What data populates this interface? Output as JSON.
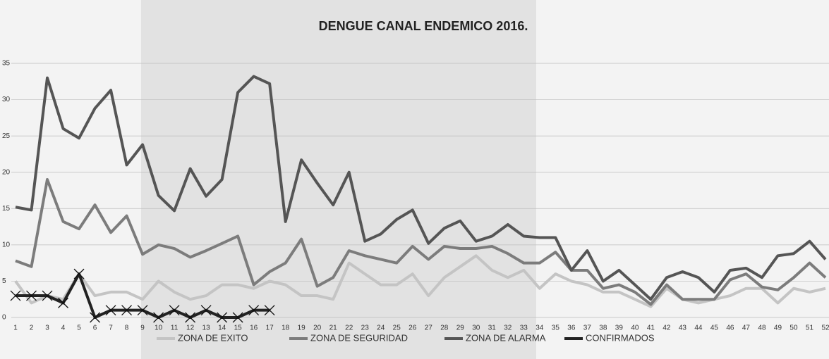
{
  "chart_data": {
    "type": "line",
    "title": "DENGUE CANAL ENDEMICO 2016.",
    "categories": [
      "1",
      "2",
      "3",
      "4",
      "5",
      "6",
      "7",
      "8",
      "9",
      "10",
      "11",
      "12",
      "13",
      "14",
      "15",
      "16",
      "17",
      "18",
      "19",
      "20",
      "21",
      "22",
      "23",
      "24",
      "25",
      "26",
      "27",
      "28",
      "29",
      "30",
      "31",
      "32",
      "33",
      "34",
      "35",
      "36",
      "37",
      "38",
      "39",
      "40",
      "41",
      "42",
      "43",
      "44",
      "45",
      "46",
      "47",
      "48",
      "49",
      "50",
      "51",
      "52"
    ],
    "series": [
      {
        "name": "ZONA DE EXITO",
        "color": "#c4c4c4",
        "values": [
          5,
          2,
          3,
          2.5,
          6,
          3,
          3.5,
          3.5,
          2.5,
          5,
          3.5,
          2.5,
          3,
          4.5,
          4.5,
          4,
          5,
          4.5,
          3,
          3,
          2.5,
          7.5,
          6,
          4.5,
          4.5,
          6,
          3,
          5.5,
          7,
          8.5,
          6.5,
          5.5,
          6.5,
          4,
          6,
          5,
          4.5,
          3.5,
          3.5,
          2.5,
          1.5,
          4,
          2.5,
          2,
          2.5,
          3,
          4,
          4,
          2,
          4,
          3.5,
          4
        ]
      },
      {
        "name": "ZONA DE SEGURIDAD",
        "color": "#7c7c7c",
        "values": [
          7.8,
          7,
          19,
          13.2,
          12.2,
          15.5,
          11.7,
          14,
          8.7,
          10,
          9.5,
          8.3,
          9.2,
          10.2,
          11.2,
          4.5,
          6.3,
          7.5,
          10.8,
          4.3,
          5.5,
          9.2,
          8.5,
          8,
          7.5,
          9.8,
          8,
          9.8,
          9.5,
          9.5,
          9.8,
          8.8,
          7.5,
          7.5,
          9,
          6.5,
          6.5,
          4,
          4.5,
          3.5,
          1.8,
          4.5,
          2.5,
          2.5,
          2.5,
          5.2,
          6,
          4.2,
          3.8,
          5.5,
          7.5,
          5.5
        ]
      },
      {
        "name": "ZONA DE ALARMA",
        "color": "#555555",
        "values": [
          15.2,
          14.8,
          33,
          26,
          24.7,
          28.8,
          31.3,
          21,
          23.8,
          16.8,
          14.7,
          20.5,
          16.7,
          19,
          31,
          33.2,
          32.2,
          13.2,
          21.7,
          18.5,
          15.5,
          20,
          10.5,
          11.5,
          13.5,
          14.8,
          10.2,
          12.3,
          13.3,
          10.5,
          11.2,
          12.8,
          11.2,
          11,
          11,
          6.5,
          9.2,
          5,
          6.5,
          4.5,
          2.5,
          5.5,
          6.3,
          5.5,
          3.5,
          6.5,
          6.8,
          5.5,
          8.5,
          8.8,
          10.5,
          8
        ]
      },
      {
        "name": "CONFIRMADOS",
        "color": "#222222",
        "values": [
          3,
          3,
          3,
          2,
          6,
          0,
          1,
          1,
          1,
          0,
          1,
          0,
          1,
          0,
          0,
          1,
          1,
          null,
          null,
          null,
          null,
          null,
          null,
          null,
          null,
          null,
          null,
          null,
          null,
          null,
          null,
          null,
          null,
          null,
          null,
          null,
          null,
          null,
          null,
          null,
          null,
          null,
          null,
          null,
          null,
          null,
          null,
          null,
          null,
          null,
          null,
          null
        ]
      }
    ],
    "ylim": [
      0,
      35
    ],
    "yticks": [
      0,
      5,
      10,
      15,
      20,
      25,
      30,
      35
    ],
    "grid": true
  }
}
